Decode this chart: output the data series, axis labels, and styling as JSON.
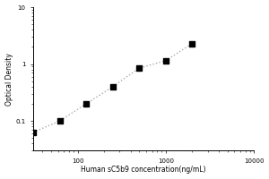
{
  "x_data": [
    31.25,
    62.5,
    125,
    250,
    500,
    1000,
    2000
  ],
  "y_data": [
    0.063,
    0.1,
    0.2,
    0.4,
    0.85,
    1.15,
    2.3
  ],
  "xlim": [
    31.25,
    10000
  ],
  "ylim": [
    0.03,
    10
  ],
  "xlabel": "Human sC5b9 concentration(ng/mL)",
  "ylabel": "Optical Density",
  "marker": "s",
  "marker_color": "black",
  "marker_size": 4,
  "line_color": "#aaaaaa",
  "line_style": ":",
  "x_ticks": [
    100,
    1000,
    10000
  ],
  "x_tick_labels": [
    "100",
    "1000",
    "10000"
  ],
  "y_ticks": [
    0.1,
    1,
    10
  ],
  "y_tick_labels": [
    "0.1",
    "1",
    "10"
  ],
  "background_color": "#ffffff"
}
